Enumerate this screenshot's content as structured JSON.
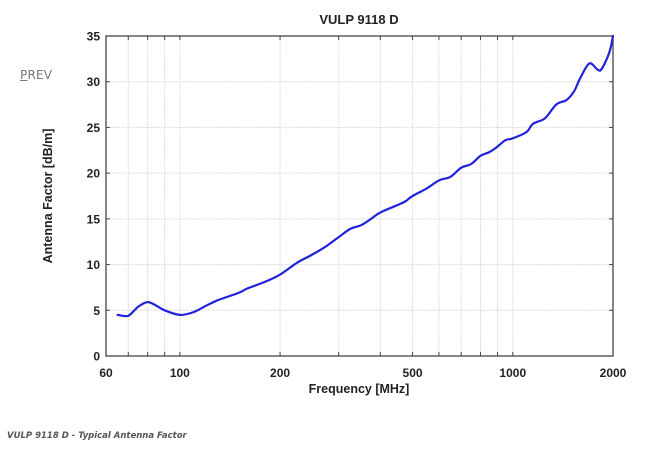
{
  "nav": {
    "prev_label": "PREV"
  },
  "caption": "VULP 9118 D - Typical Antenna Factor",
  "colors": {
    "line": "#2222dd",
    "grid": "#d8d8d8",
    "axis": "#444444"
  },
  "chart_data": {
    "type": "line",
    "title": "VULP 9118 D",
    "xlabel": "Frequency [MHz]",
    "ylabel": "Antenna Factor [dB/m]",
    "xscale": "log",
    "xlim": [
      60,
      2000
    ],
    "ylim": [
      0,
      35
    ],
    "grid": true,
    "legend": "none",
    "x_ticks": [
      60,
      100,
      200,
      500,
      1000,
      2000
    ],
    "x_tick_labels": [
      "60",
      "100",
      "200",
      "500",
      "1000",
      "2000"
    ],
    "x_minor_grid": [
      70,
      80,
      90,
      100,
      200,
      300,
      400,
      500,
      600,
      700,
      800,
      900,
      1000
    ],
    "y_ticks": [
      0,
      5,
      10,
      15,
      20,
      25,
      30,
      35
    ],
    "y_tick_labels": [
      "0",
      "5",
      "10",
      "15",
      "20",
      "25",
      "30",
      "35"
    ],
    "series": [
      {
        "name": "Antenna Factor",
        "x": [
          65,
          70,
          75,
          80,
          85,
          90,
          100,
          110,
          120,
          130,
          150,
          160,
          180,
          200,
          225,
          250,
          275,
          300,
          325,
          350,
          375,
          400,
          450,
          475,
          500,
          550,
          600,
          650,
          700,
          750,
          800,
          850,
          900,
          950,
          1000,
          1100,
          1150,
          1250,
          1350,
          1450,
          1530,
          1600,
          1700,
          1800,
          1850,
          1950,
          2000
        ],
        "y": [
          4.5,
          4.4,
          5.4,
          5.9,
          5.5,
          5.0,
          4.5,
          4.8,
          5.5,
          6.1,
          6.9,
          7.4,
          8.1,
          8.9,
          10.2,
          11.1,
          12.0,
          13.0,
          13.9,
          14.3,
          15.0,
          15.7,
          16.5,
          16.9,
          17.5,
          18.3,
          19.2,
          19.6,
          20.6,
          21.0,
          21.9,
          22.3,
          22.9,
          23.6,
          23.8,
          24.5,
          25.4,
          26.0,
          27.5,
          28.0,
          29.0,
          30.5,
          32.0,
          31.3,
          31.4,
          33.2,
          35.0
        ]
      }
    ]
  }
}
